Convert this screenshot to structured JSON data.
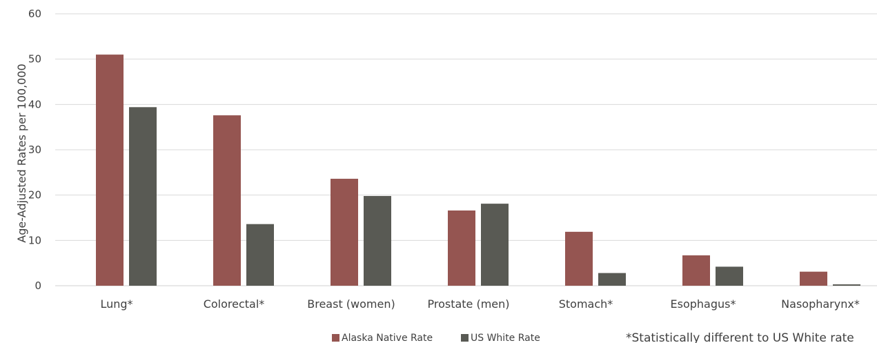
{
  "chart_data": {
    "type": "bar",
    "categories": [
      "Lung*",
      "Colorectal*",
      "Breast (women)",
      "Prostate (men)",
      "Stomach*",
      "Esophagus*",
      "Nasopharynx*"
    ],
    "series": [
      {
        "name": "Alaska Native Rate",
        "color": "#955551",
        "values": [
          51.0,
          37.6,
          23.6,
          16.6,
          11.9,
          6.7,
          3.1
        ]
      },
      {
        "name": "US White Rate",
        "color": "#595a54",
        "values": [
          39.4,
          13.6,
          19.8,
          18.1,
          2.8,
          4.2,
          0.3
        ]
      }
    ],
    "ylabel": "Age-Adjusted Rates per 100,000",
    "xlabel": "",
    "ylim": [
      0,
      60
    ],
    "yticks": [
      0,
      10,
      20,
      30,
      40,
      50,
      60
    ],
    "grid": true,
    "legend": "bottom-center",
    "footnote": "*Statistically different to US White rate"
  }
}
